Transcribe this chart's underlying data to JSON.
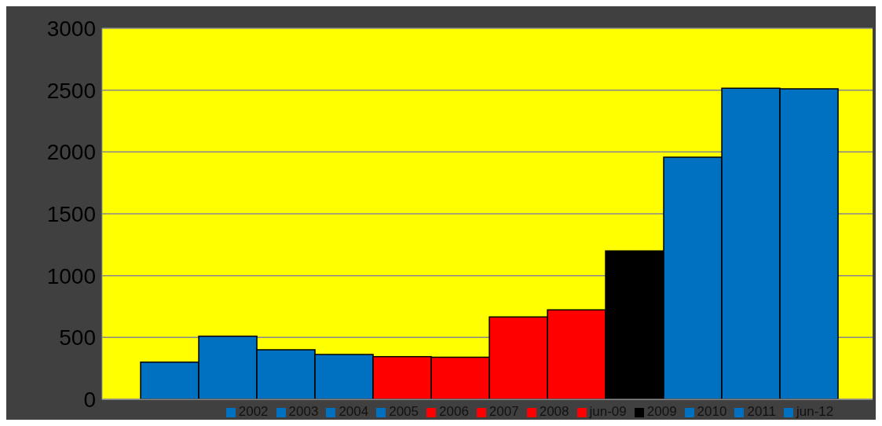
{
  "chart_data": {
    "type": "bar",
    "categories": [
      null
    ],
    "series": [
      {
        "name": "2002",
        "color": "#0070c0",
        "values": [
          300
        ]
      },
      {
        "name": "2003",
        "color": "#0070c0",
        "values": [
          510
        ]
      },
      {
        "name": "2004",
        "color": "#0070c0",
        "values": [
          400
        ]
      },
      {
        "name": "2005",
        "color": "#0070c0",
        "values": [
          362
        ]
      },
      {
        "name": "2006",
        "color": "#ff0000",
        "values": [
          345
        ]
      },
      {
        "name": "2007",
        "color": "#ff0000",
        "values": [
          340
        ]
      },
      {
        "name": "2008",
        "color": "#ff0000",
        "values": [
          665
        ]
      },
      {
        "name": "jun-09",
        "color": "#ff0000",
        "values": [
          723
        ]
      },
      {
        "name": "2009",
        "color": "#000000",
        "values": [
          1200
        ]
      },
      {
        "name": "2010",
        "color": "#0070c0",
        "values": [
          1958
        ]
      },
      {
        "name": "2011",
        "color": "#0070c0",
        "values": [
          2515
        ]
      },
      {
        "name": "jun-12",
        "color": "#0070c0",
        "values": [
          2510
        ]
      }
    ],
    "ylim": [
      0,
      3000
    ],
    "yticks": [
      0,
      500,
      1000,
      1500,
      2000,
      2500,
      3000
    ],
    "grid": "y",
    "legend": "bottom"
  }
}
